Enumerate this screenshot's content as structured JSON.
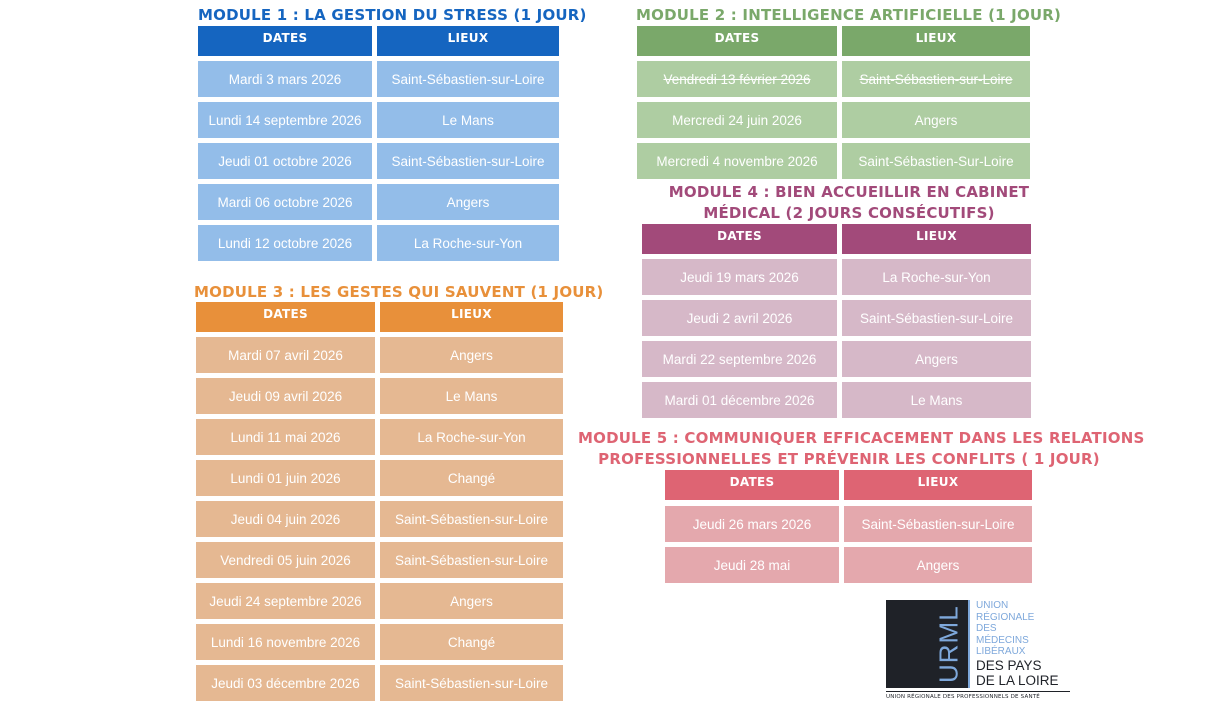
{
  "colors": {
    "m1_title": "#1565c0",
    "m1_head": "#1565c0",
    "m1_cell": "#93bde9",
    "m2_title": "#7aa86a",
    "m2_head": "#7aa86a",
    "m2_cell": "#aecda2",
    "m3_title": "#e8903a",
    "m3_head": "#e8903a",
    "m3_cell": "#e5b892",
    "m4_title": "#a24a7a",
    "m4_head": "#a24a7a",
    "m4_cell": "#d6b8c8",
    "m5_title": "#de6473",
    "m5_head": "#de6473",
    "m5_cell": "#e4a8ad"
  },
  "module1": {
    "title": "MODULE 1 : LA GESTION DU STRESS (1 JOUR)",
    "headers": {
      "dates": "DATES",
      "lieux": "LIEUX"
    },
    "rows": [
      {
        "date": "Mardi 3 mars 2026",
        "lieu": "Saint-Sébastien-sur-Loire"
      },
      {
        "date": "Lundi 14 septembre 2026",
        "lieu": "Le Mans"
      },
      {
        "date": "Jeudi 01 octobre 2026",
        "lieu": "Saint-Sébastien-sur-Loire"
      },
      {
        "date": "Mardi 06 octobre 2026",
        "lieu": "Angers"
      },
      {
        "date": "Lundi 12 octobre 2026",
        "lieu": "La Roche-sur-Yon"
      }
    ]
  },
  "module2": {
    "title": "MODULE 2 : INTELLIGENCE ARTIFICIELLE (1 JOUR)",
    "headers": {
      "dates": "DATES",
      "lieux": "LIEUX"
    },
    "rows": [
      {
        "date": "Vendredi 13 février 2026",
        "lieu": "Saint-Sébastien-sur-Loire",
        "struck": true
      },
      {
        "date": "Mercredi 24 juin 2026",
        "lieu": "Angers"
      },
      {
        "date": "Mercredi 4 novembre 2026",
        "lieu": "Saint-Sébastien-Sur-Loire"
      }
    ]
  },
  "module3": {
    "title": "MODULE 3 : LES GESTES QUI SAUVENT (1 JOUR)",
    "headers": {
      "dates": "DATES",
      "lieux": "LIEUX"
    },
    "rows": [
      {
        "date": "Mardi 07 avril 2026",
        "lieu": "Angers"
      },
      {
        "date": "Jeudi 09 avril 2026",
        "lieu": "Le Mans"
      },
      {
        "date": "Lundi 11 mai 2026",
        "lieu": "La Roche-sur-Yon"
      },
      {
        "date": "Lundi 01 juin 2026",
        "lieu": "Changé"
      },
      {
        "date": "Jeudi 04 juin 2026",
        "lieu": "Saint-Sébastien-sur-Loire"
      },
      {
        "date": "Vendredi 05 juin 2026",
        "lieu": "Saint-Sébastien-sur-Loire"
      },
      {
        "date": "Jeudi 24 septembre 2026",
        "lieu": "Angers"
      },
      {
        "date": "Lundi 16 novembre 2026",
        "lieu": "Changé"
      },
      {
        "date": "Jeudi 03 décembre 2026",
        "lieu": "Saint-Sébastien-sur-Loire"
      }
    ]
  },
  "module4": {
    "title_line1": "MODULE 4 : BIEN ACCUEILLIR EN CABINET",
    "title_line2": "MÉDICAL (2 JOURS CONSÉCUTIFS)",
    "headers": {
      "dates": "DATES",
      "lieux": "LIEUX"
    },
    "rows": [
      {
        "date": "Jeudi 19 mars 2026",
        "lieu": "La Roche-sur-Yon"
      },
      {
        "date": "Jeudi 2 avril 2026",
        "lieu": "Saint-Sébastien-sur-Loire"
      },
      {
        "date": "Mardi 22 septembre 2026",
        "lieu": "Angers"
      },
      {
        "date": "Mardi 01 décembre 2026",
        "lieu": "Le Mans"
      }
    ]
  },
  "module5": {
    "title_line1": "MODULE 5 : COMMUNIQUER EFFICACEMENT DANS LES RELATIONS",
    "title_line2": "PROFESSIONNELLES ET PRÉVENIR LES CONFLITS ( 1 JOUR)",
    "headers": {
      "dates": "DATES",
      "lieux": "LIEUX"
    },
    "rows": [
      {
        "date": "Jeudi 26 mars 2026",
        "lieu": "Saint-Sébastien-sur-Loire"
      },
      {
        "date": "Jeudi 28 mai",
        "lieu": "Angers"
      }
    ]
  },
  "logo": {
    "mark": "URML",
    "small_lines": [
      "UNION",
      "RÉGIONALE",
      "DES",
      "MÉDECINS",
      "LIBÉRAUX"
    ],
    "big_lines": [
      "DES PAYS",
      "DE LA LOIRE"
    ],
    "footer": "UNION RÉGIONALE DES PROFESSIONNELS DE SANTÉ"
  }
}
